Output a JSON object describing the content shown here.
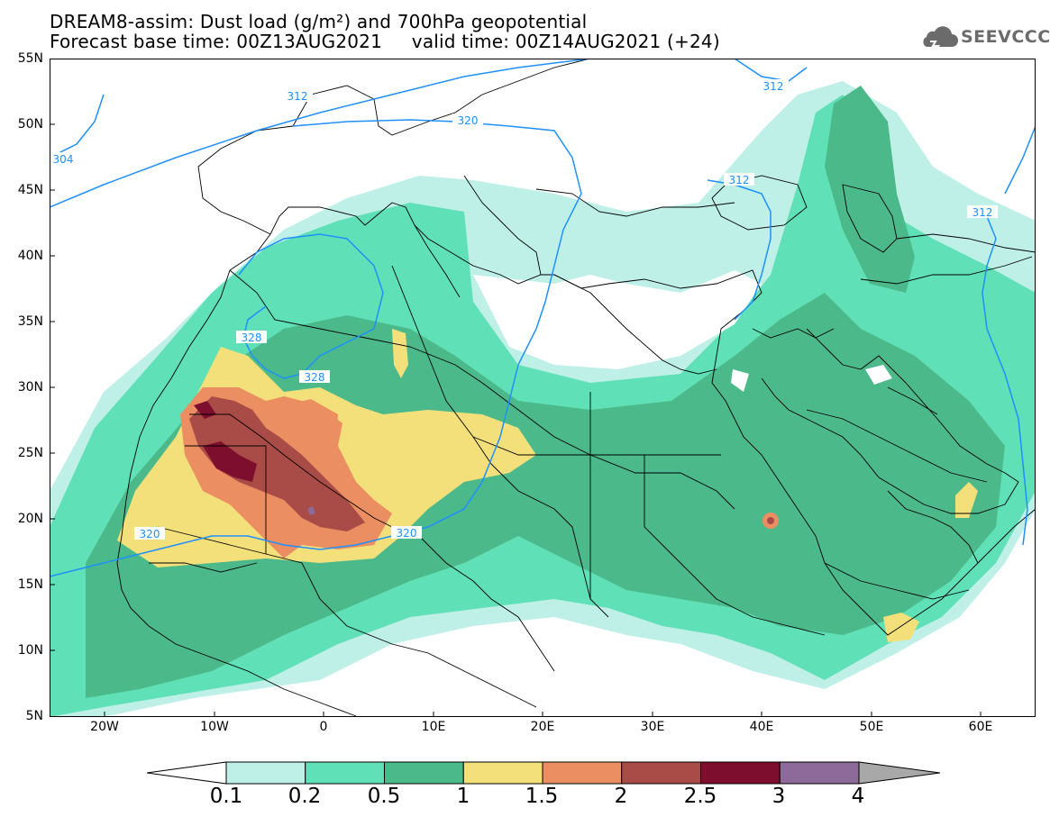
{
  "header": {
    "title_line1": "DREAM8-assim: Dust load (g/m²) and 700hPa geopotential",
    "title_line2": "Forecast base time: 00Z13AUG2021     valid time: 00Z14AUG2021 (+24)"
  },
  "logo": {
    "text": "SEEVCCC",
    "icon": "cloud-logo-icon"
  },
  "map": {
    "latitude_labels": [
      "55N",
      "50N",
      "45N",
      "40N",
      "35N",
      "30N",
      "25N",
      "20N",
      "15N",
      "10N",
      "5N"
    ],
    "longitude_labels": [
      "20W",
      "10W",
      "0",
      "10E",
      "20E",
      "30E",
      "40E",
      "50E",
      "60E"
    ],
    "contour_labels": [
      "312",
      "320",
      "304",
      "312",
      "312",
      "312",
      "328",
      "328",
      "320",
      "320"
    ],
    "colors": {
      "land_outline": "#000000",
      "contour": "#1e90ff",
      "background": "#ffffff"
    }
  },
  "legend": {
    "labels": [
      "0.1",
      "0.2",
      "0.5",
      "1",
      "1.5",
      "2",
      "2.5",
      "3",
      "4"
    ],
    "colors": [
      "#bff0e8",
      "#5fe0b6",
      "#4cb98b",
      "#f4e07a",
      "#eb8e62",
      "#a94b47",
      "#7e0e2d",
      "#8d6a99",
      "#a8a8a8"
    ]
  }
}
